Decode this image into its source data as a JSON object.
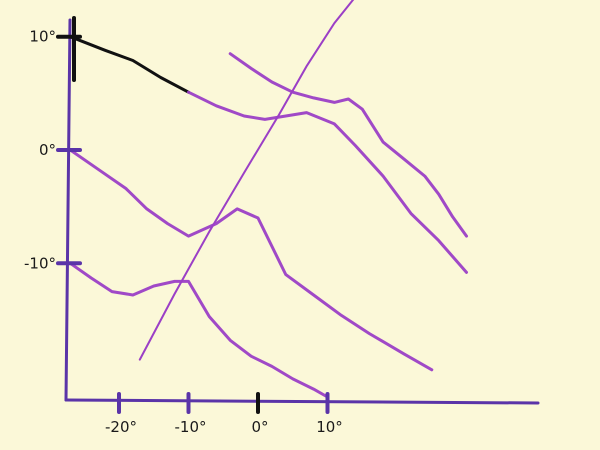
{
  "chart_data": {
    "type": "line",
    "x_tick_labels": [
      "-20°",
      "-10°",
      "0°",
      "10°"
    ],
    "y_tick_labels": [
      "10°",
      "0°",
      "-10°"
    ],
    "x_ticks": [
      -20,
      -10,
      0,
      10
    ],
    "y_ticks": [
      10,
      0,
      -10
    ],
    "xlim": [
      -27,
      30
    ],
    "ylim": [
      -22,
      12
    ],
    "series": [
      {
        "x": [
          -27,
          -22,
          -18,
          -14,
          -10,
          -6,
          -2,
          1,
          4,
          7,
          11,
          14,
          18,
          22,
          26,
          30
        ],
        "y": [
          10,
          8.8,
          7.9,
          6.4,
          5.1,
          3.9,
          3,
          2.7,
          3,
          3.3,
          2.3,
          0.4,
          -2.3,
          -5.6,
          -8,
          -10.8
        ]
      },
      {
        "x": [
          -27,
          -23,
          -19,
          -16,
          -13,
          -10,
          -6,
          -3,
          0,
          4,
          8,
          12,
          16,
          21,
          25
        ],
        "y": [
          0,
          -1.7,
          -3.4,
          -5.2,
          -6.5,
          -7.6,
          -6.5,
          -5.2,
          -6,
          -11,
          -12.8,
          -14.6,
          -16.2,
          -18,
          -19.4
        ]
      },
      {
        "x": [
          -27,
          -24,
          -21,
          -18,
          -15,
          -12,
          -10,
          -7,
          -4,
          -1,
          2,
          5,
          8,
          10
        ],
        "y": [
          -10,
          -11.3,
          -12.5,
          -12.8,
          -12,
          -11.6,
          -11.6,
          -14.7,
          -16.8,
          -18.2,
          -19.1,
          -20.2,
          -21.1,
          -21.8
        ]
      },
      {
        "x": [
          -4,
          -1,
          2,
          5,
          8,
          11,
          13,
          15,
          18,
          21,
          24,
          26,
          28,
          30
        ],
        "y": [
          8.5,
          7.2,
          6,
          5.1,
          4.6,
          4.2,
          4.5,
          3.6,
          0.7,
          -0.8,
          -2.3,
          -3.9,
          -5.9,
          -7.6
        ]
      },
      {
        "x": [
          -17,
          -12,
          -7,
          -2,
          3,
          7,
          11,
          14,
          17
        ],
        "y": [
          -18.5,
          -12.7,
          -7.2,
          -2,
          3.1,
          7.4,
          11.2,
          13.5,
          14.6
        ]
      }
    ]
  }
}
